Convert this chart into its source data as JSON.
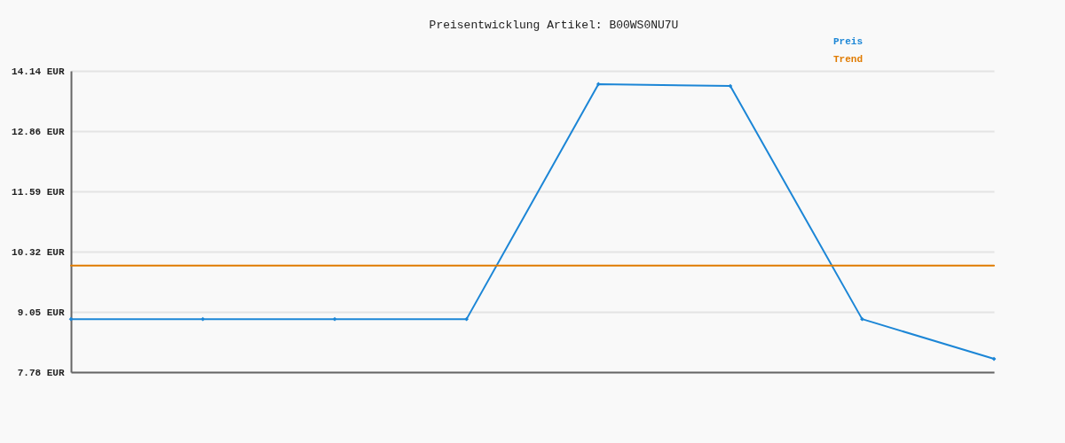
{
  "chart_data": {
    "type": "line",
    "title": "Preisentwicklung Artikel: B00WS0NU7U",
    "categories": [
      null,
      null,
      null,
      null,
      null,
      null,
      null,
      null
    ],
    "series": [
      {
        "name": "Preis",
        "color": "#1c86d6",
        "marker": "diamond",
        "values": [
          8.9,
          8.9,
          8.9,
          8.9,
          13.86,
          13.82,
          8.9,
          8.06
        ]
      },
      {
        "name": "Trend",
        "color": "#e07b00",
        "marker": "none",
        "values": [
          10.03,
          10.03,
          10.03,
          10.03,
          10.03,
          10.03,
          10.03,
          10.03
        ]
      }
    ],
    "ylim": [
      7.78,
      14.14
    ],
    "yticks": [
      {
        "value": 7.78,
        "label": "7.78 EUR"
      },
      {
        "value": 9.05,
        "label": "9.05 EUR"
      },
      {
        "value": 10.32,
        "label": "10.32 EUR"
      },
      {
        "value": 11.59,
        "label": "11.59 EUR"
      },
      {
        "value": 12.86,
        "label": "12.86 EUR"
      },
      {
        "value": 14.14,
        "label": "14.14 EUR"
      }
    ],
    "grid": "y",
    "legend": "top right",
    "tick_labels": "y",
    "line_style": "solid"
  }
}
